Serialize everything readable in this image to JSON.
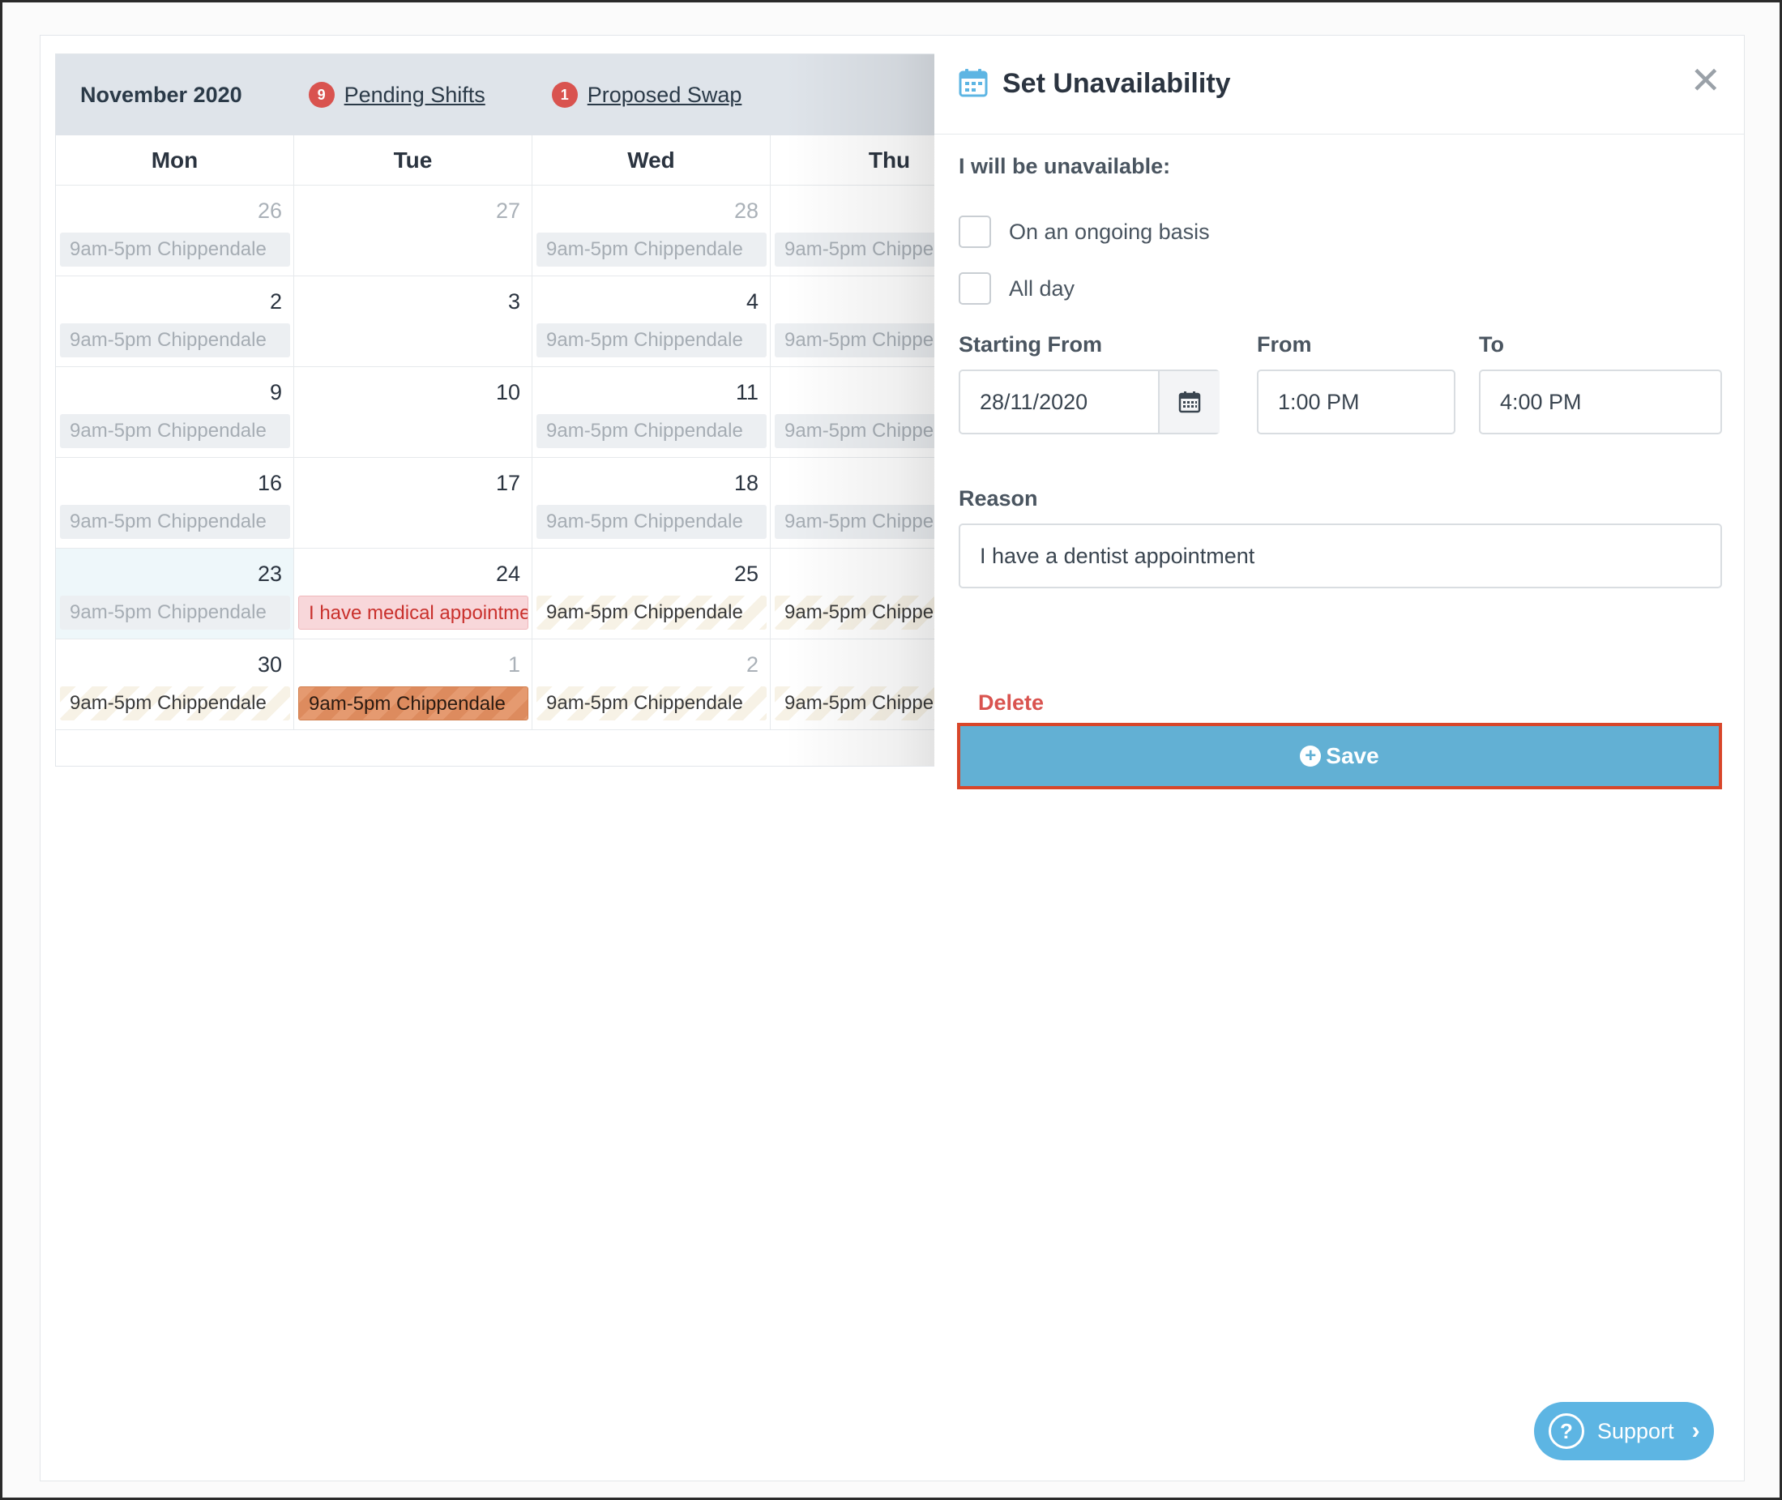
{
  "calendar": {
    "month_title": "November 2020",
    "pending_shifts": {
      "count": "9",
      "label": "Pending Shifts"
    },
    "proposed_swap": {
      "count": "1",
      "label": "Proposed Swap"
    },
    "days_of_week": [
      "Mon",
      "Tue",
      "Wed",
      "Thu"
    ],
    "weeks": [
      [
        {
          "num": "26",
          "other": true,
          "shift": "9am-5pm Chippendale",
          "style": "past"
        },
        {
          "num": "27",
          "other": true,
          "shift": "",
          "style": ""
        },
        {
          "num": "28",
          "other": true,
          "shift": "9am-5pm Chippendale",
          "style": "past"
        },
        {
          "num": "",
          "other": true,
          "shift": "9am-5pm Chippe",
          "style": "past"
        }
      ],
      [
        {
          "num": "2",
          "other": false,
          "shift": "9am-5pm Chippendale",
          "style": "past"
        },
        {
          "num": "3",
          "other": false,
          "shift": "",
          "style": ""
        },
        {
          "num": "4",
          "other": false,
          "shift": "9am-5pm Chippendale",
          "style": "past"
        },
        {
          "num": "",
          "other": false,
          "shift": "9am-5pm Chippe",
          "style": "past"
        }
      ],
      [
        {
          "num": "9",
          "other": false,
          "shift": "9am-5pm Chippendale",
          "style": "past"
        },
        {
          "num": "10",
          "other": false,
          "shift": "",
          "style": ""
        },
        {
          "num": "11",
          "other": false,
          "shift": "9am-5pm Chippendale",
          "style": "past"
        },
        {
          "num": "",
          "other": false,
          "shift": "9am-5pm Chippe",
          "style": "past"
        }
      ],
      [
        {
          "num": "16",
          "other": false,
          "shift": "9am-5pm Chippendale",
          "style": "past"
        },
        {
          "num": "17",
          "other": false,
          "shift": "",
          "style": ""
        },
        {
          "num": "18",
          "other": false,
          "shift": "9am-5pm Chippendale",
          "style": "past"
        },
        {
          "num": "",
          "other": false,
          "shift": "9am-5pm Chippe",
          "style": "past"
        }
      ],
      [
        {
          "num": "23",
          "other": false,
          "today": true,
          "shift": "9am-5pm Chippendale",
          "style": "past"
        },
        {
          "num": "24",
          "other": false,
          "shift": "I have medical appointme",
          "style": "unavail"
        },
        {
          "num": "25",
          "other": false,
          "shift": "9am-5pm Chippendale",
          "style": "striped"
        },
        {
          "num": "",
          "other": false,
          "shift": "9am-5pm Chippe",
          "style": "striped"
        }
      ],
      [
        {
          "num": "30",
          "other": false,
          "shift": "9am-5pm Chippendale",
          "style": "striped"
        },
        {
          "num": "1",
          "other": true,
          "shift": "9am-5pm Chippendale",
          "style": "orange"
        },
        {
          "num": "2",
          "other": true,
          "shift": "9am-5pm Chippendale",
          "style": "striped"
        },
        {
          "num": "",
          "other": true,
          "shift": "9am-5pm Chippe",
          "style": "striped"
        }
      ]
    ]
  },
  "panel": {
    "title": "Set Unavailability",
    "close_glyph": "✕",
    "unavailable_label": "I will be unavailable:",
    "ongoing_label": "On an ongoing basis",
    "allday_label": "All day",
    "starting_from_label": "Starting From",
    "from_label": "From",
    "to_label": "To",
    "starting_from_value": "28/11/2020",
    "from_value": "1:00 PM",
    "to_value": "4:00 PM",
    "reason_label": "Reason",
    "reason_value": "I have a dentist appointment",
    "delete_label": "Delete",
    "save_label": "Save",
    "support_label": "Support"
  },
  "colors": {
    "accent": "#62b0d4",
    "danger": "#d9534f",
    "highlight_border": "#d8462a",
    "support": "#5db5e3"
  }
}
